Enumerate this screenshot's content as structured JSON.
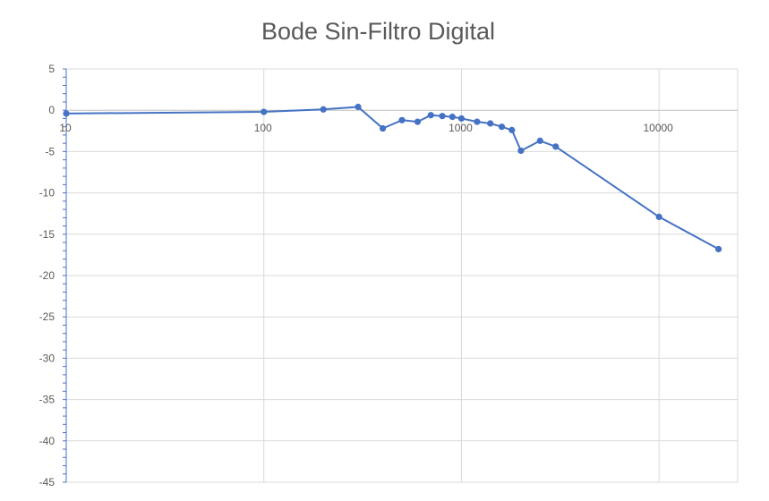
{
  "chart_data": {
    "type": "scatter",
    "title": "Bode Sin-Filtro Digital",
    "xlabel": "",
    "ylabel": "",
    "x_scale": "log",
    "xlim": [
      10,
      25000
    ],
    "ylim": [
      -45,
      5
    ],
    "x_ticks": [
      10,
      100,
      1000,
      10000
    ],
    "x_tick_labels": [
      "10",
      "100",
      "1000",
      "10000"
    ],
    "y_ticks": [
      5,
      0,
      -5,
      -10,
      -15,
      -20,
      -25,
      -30,
      -35,
      -40,
      -45
    ],
    "y_tick_labels": [
      "5",
      "0",
      "-5",
      "-10",
      "-15",
      "-20",
      "-25",
      "-30",
      "-35",
      "-40",
      "-45"
    ],
    "grid": true,
    "legend": "none",
    "series_color": "#4472C4",
    "series": [
      {
        "x": [
          10,
          100,
          200,
          300,
          400,
          500,
          600,
          700,
          800,
          900,
          1000,
          1200,
          1400,
          1600,
          1800,
          2000,
          2500,
          3000,
          10000,
          20000
        ],
        "y": [
          -0.4,
          -0.2,
          0.1,
          0.4,
          -2.2,
          -1.2,
          -1.4,
          -0.6,
          -0.7,
          -0.8,
          -1.0,
          -1.4,
          -1.6,
          -2.0,
          -2.4,
          -4.9,
          -3.7,
          -4.4,
          -12.9,
          -16.8
        ]
      }
    ]
  }
}
